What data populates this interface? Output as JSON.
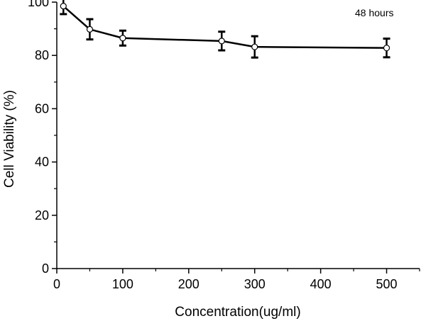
{
  "chart_data": {
    "type": "line",
    "title": "",
    "xlabel": "Concentration(ug/ml)",
    "ylabel": "Cell Viability (%)",
    "xlim": [
      0,
      550
    ],
    "ylim": [
      0,
      100
    ],
    "xticks": [
      0,
      100,
      200,
      300,
      400,
      500
    ],
    "yticks": [
      0,
      20,
      40,
      60,
      80,
      100
    ],
    "annotation": "48 hours",
    "grid": false,
    "legend": "none",
    "series": [
      {
        "x": [
          10,
          50,
          100,
          250,
          300,
          500
        ],
        "y": [
          98.5,
          89.8,
          86.5,
          85.4,
          83.2,
          82.8
        ],
        "error": [
          3.0,
          3.8,
          2.8,
          3.5,
          4.0,
          3.5
        ]
      }
    ],
    "colors": {
      "line": "#000000",
      "marker_fill": "#ffffff",
      "axis": "#000000"
    }
  }
}
